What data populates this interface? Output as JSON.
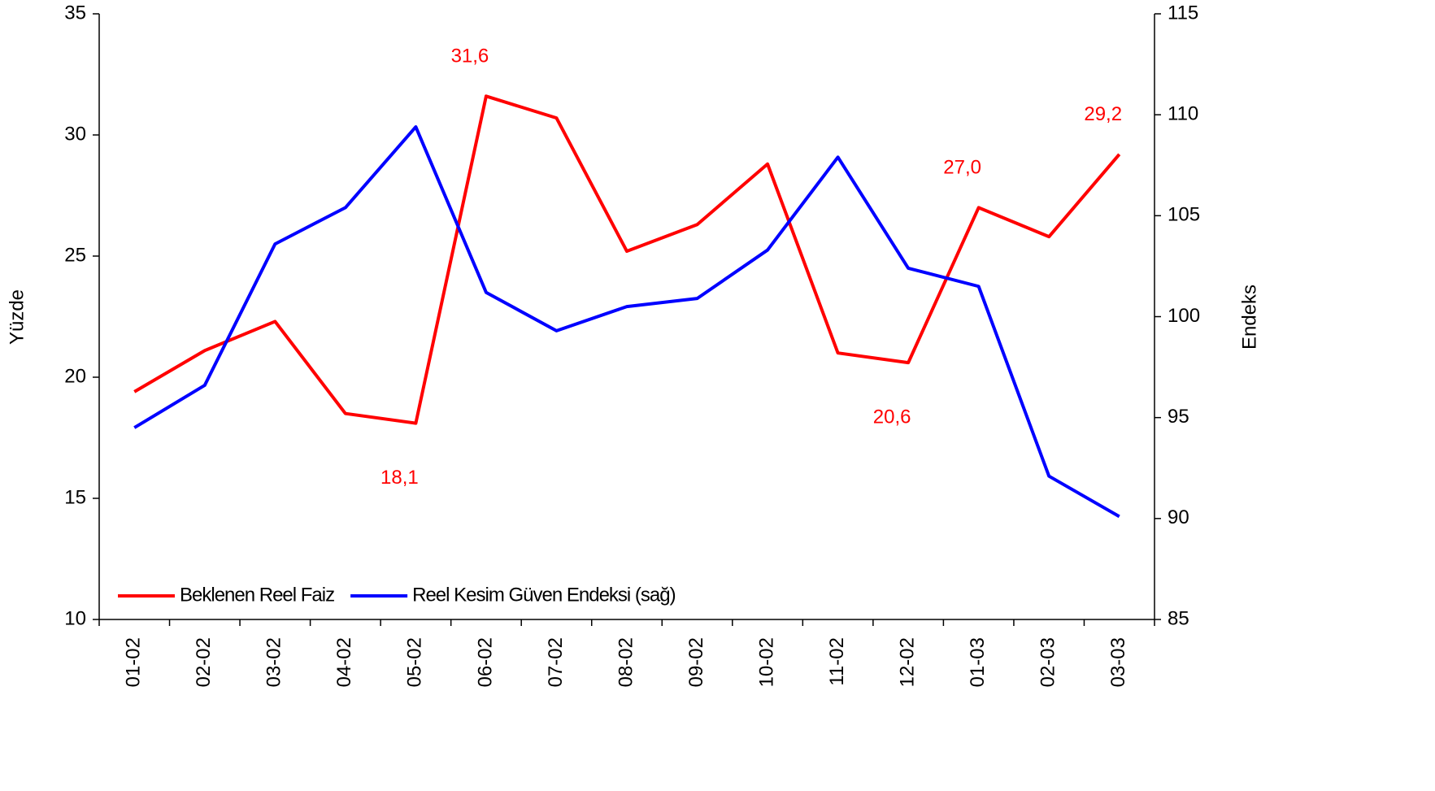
{
  "chart_data": {
    "type": "line",
    "y_label": "Yüzde",
    "y2_label": "Endeks",
    "categories": [
      "01-02",
      "02-02",
      "03-02",
      "04-02",
      "05-02",
      "06-02",
      "07-02",
      "08-02",
      "09-02",
      "10-02",
      "11-02",
      "12-02",
      "01-03",
      "02-03",
      "03-03"
    ],
    "series": [
      {
        "name": "Beklenen Reel Faiz",
        "color": "#ff0000",
        "values": [
          19.4,
          21.1,
          22.3,
          18.5,
          18.1,
          31.6,
          30.7,
          25.2,
          26.3,
          28.8,
          21.0,
          20.6,
          27.0,
          25.8,
          29.2
        ],
        "value_labels": [
          null,
          null,
          null,
          null,
          "18,1",
          "31,6",
          null,
          null,
          null,
          null,
          null,
          "20,6",
          "27,0",
          null,
          "29,2"
        ]
      },
      {
        "name": "Reel Kesim Güven Endeksi (sağ)",
        "color": "#0000ff",
        "axis": "y2",
        "values": [
          94.5,
          96.6,
          103.6,
          105.4,
          109.4,
          101.2,
          99.3,
          100.5,
          100.9,
          103.3,
          107.9,
          102.4,
          101.5,
          92.1,
          90.1
        ]
      }
    ],
    "ylim": [
      10,
      35
    ],
    "yticks": [
      10,
      15,
      20,
      25,
      30,
      35
    ],
    "y2lim": [
      85,
      115
    ],
    "y2ticks": [
      85,
      90,
      95,
      100,
      105,
      110,
      115
    ],
    "legend": "lower left",
    "grid": false
  }
}
